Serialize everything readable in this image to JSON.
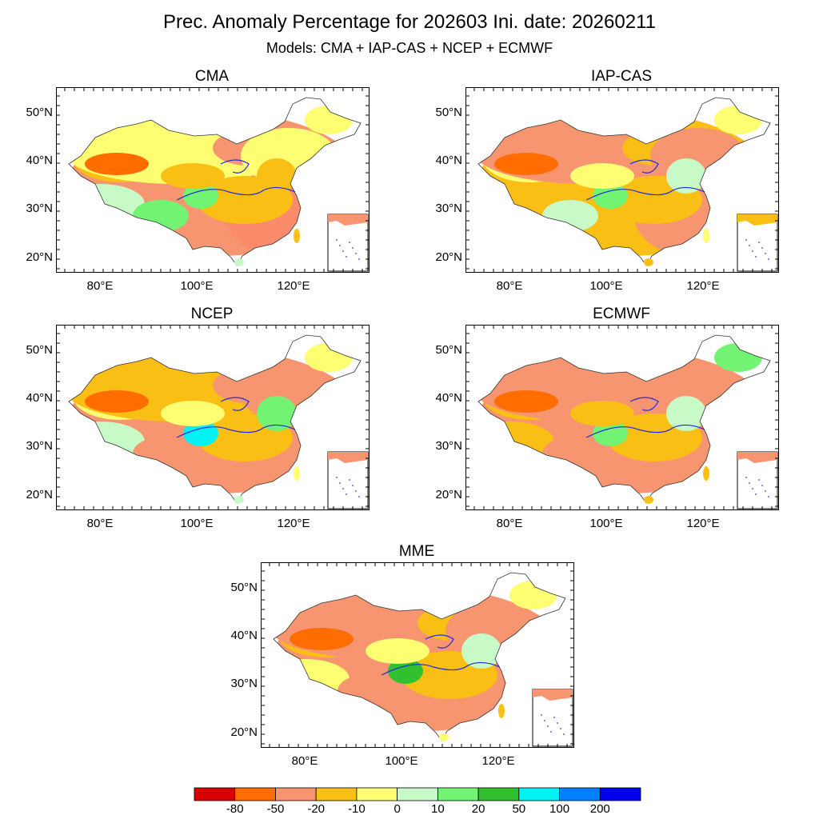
{
  "header": {
    "title": "Prec. Anomaly Percentage for 202603 Ini. date: 20260211",
    "subtitle": "Models: CMA + IAP-CAS + NCEP + ECMWF"
  },
  "axes": {
    "lat_labels": [
      "50°N",
      "40°N",
      "30°N",
      "20°N"
    ],
    "lon_labels": [
      "80°E",
      "100°E",
      "120°E"
    ]
  },
  "panels": [
    {
      "title": "CMA",
      "colors": [
        "#f6956f",
        "#fabf14",
        "#fefe72",
        "#c8fac8",
        "#73f373",
        "#fb8c6b",
        "#fabf14",
        "#73f373",
        "#f6956f",
        "#fefe72",
        "#fabf14",
        "#ff6c00",
        "#fabf14",
        "#fefe72"
      ]
    },
    {
      "title": "IAP-CAS",
      "colors": [
        "#fabf14",
        "#fefe72",
        "#f6956f",
        "#fabf14",
        "#c8fac8",
        "#f6956f",
        "#fabf14",
        "#73f373",
        "#fabf14",
        "#f6956f",
        "#fefe72",
        "#ff6c00",
        "#c8fac8",
        "#fefe72"
      ]
    },
    {
      "title": "NCEP",
      "colors": [
        "#f6956f",
        "#fefe72",
        "#fabf14",
        "#c8fac8",
        "#f6956f",
        "#f6956f",
        "#fabf14",
        "#00f2f2",
        "#f6956f",
        "#f6956f",
        "#fefe72",
        "#ff6c00",
        "#73f373",
        "#fefe72"
      ]
    },
    {
      "title": "ECMWF",
      "colors": [
        "#f6956f",
        "#fabf14",
        "#f6956f",
        "#fabf14",
        "#f6956f",
        "#f6956f",
        "#fabf14",
        "#73f373",
        "#f6956f",
        "#f6956f",
        "#fabf14",
        "#ff6c00",
        "#c8fac8",
        "#73f373"
      ]
    },
    {
      "title": "MME",
      "colors": [
        "#f6956f",
        "#fabf14",
        "#f6956f",
        "#fefe72",
        "#f6956f",
        "#f6956f",
        "#fabf14",
        "#30c030",
        "#fabf14",
        "#f6956f",
        "#fefe72",
        "#ff6c00",
        "#c8fac8",
        "#fefe72"
      ]
    }
  ],
  "colorbar": {
    "colors": [
      "#d80000",
      "#ff6c00",
      "#f6956f",
      "#fabf14",
      "#fefe72",
      "#c8fac8",
      "#73f373",
      "#30c030",
      "#00f2f2",
      "#0080ff",
      "#0000ec"
    ],
    "labels": [
      "-80",
      "-50",
      "-20",
      "-10",
      "0",
      "10",
      "20",
      "50",
      "100",
      "200"
    ]
  }
}
